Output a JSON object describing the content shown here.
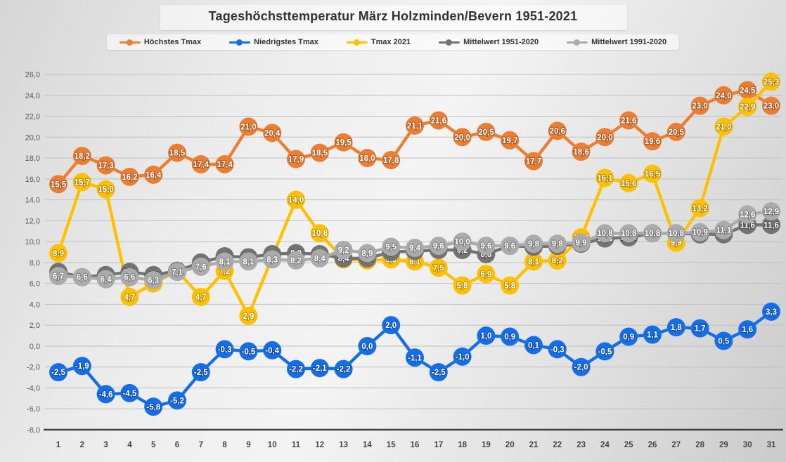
{
  "title": "Tageshöchsttemperatur März Holzminden/Bevern 1951-2021",
  "legend": {
    "items": [
      {
        "label": "Höchstes Tmax",
        "color": "#ED7D31"
      },
      {
        "label": "Niedrigstes Tmax",
        "color": "#156EE8"
      },
      {
        "label": "Tmax 2021",
        "color": "#FFC000"
      },
      {
        "label": "Mittelwert 1951-2020",
        "color": "#737373"
      },
      {
        "label": "Mittelwert 1991-2020",
        "color": "#ABABAB"
      }
    ]
  },
  "chart_data": {
    "type": "line",
    "title": "Tageshöchsttemperatur März Holzminden/Bevern 1951-2021",
    "xlabel": "",
    "ylabel": "",
    "x": [
      1,
      2,
      3,
      4,
      5,
      6,
      7,
      8,
      9,
      10,
      11,
      12,
      13,
      14,
      15,
      16,
      17,
      18,
      19,
      20,
      21,
      22,
      23,
      24,
      25,
      26,
      27,
      28,
      29,
      30,
      31
    ],
    "x_tick_labels": [
      "1",
      "2",
      "3",
      "4",
      "5",
      "6",
      "7",
      "8",
      "9",
      "10",
      "11",
      "12",
      "13",
      "14",
      "15",
      "16",
      "17",
      "18",
      "19",
      "20",
      "21",
      "22",
      "23",
      "24",
      "25",
      "26",
      "27",
      "28",
      "29",
      "30",
      "31"
    ],
    "ylim": [
      -8,
      26
    ],
    "ytick_step": 2,
    "y_tick_labels": [
      "26,0",
      "24,0",
      "22,0",
      "20,0",
      "18,0",
      "16,0",
      "14,0",
      "12,0",
      "10,0",
      "8,0",
      "6,0",
      "4,0",
      "2,0",
      "0,0",
      "-2,0",
      "-4,0",
      "-6,0",
      "-8,0"
    ],
    "grid": true,
    "legend_position": "top",
    "decimal_separator": ",",
    "series": [
      {
        "name": "Höchstes Tmax",
        "color": "#ED7D31",
        "values": [
          15.5,
          18.2,
          17.3,
          16.2,
          16.4,
          18.5,
          17.4,
          17.4,
          21.0,
          20.4,
          17.9,
          18.5,
          19.5,
          18.0,
          17.8,
          21.1,
          21.6,
          20.0,
          20.5,
          19.7,
          17.7,
          20.6,
          18.6,
          20.0,
          21.6,
          19.6,
          20.5,
          23.0,
          24.0,
          24.5,
          23.0
        ]
      },
      {
        "name": "Niedrigstes Tmax",
        "color": "#156EE8",
        "values": [
          -2.5,
          -1.9,
          -4.6,
          -4.5,
          -5.8,
          -5.2,
          -2.5,
          -0.3,
          -0.5,
          -0.4,
          -2.2,
          -2.1,
          -2.2,
          0.0,
          2.0,
          -1.1,
          -2.5,
          -1.0,
          1.0,
          0.9,
          0.1,
          -0.3,
          -2.0,
          -0.5,
          0.9,
          1.1,
          1.8,
          1.7,
          0.5,
          1.6,
          3.3
        ]
      },
      {
        "name": "Tmax 2021",
        "color": "#FFC000",
        "values": [
          8.9,
          15.7,
          15.0,
          4.7,
          6.0,
          7.2,
          4.7,
          7.2,
          2.9,
          8.5,
          14.0,
          10.8,
          8.3,
          8.2,
          8.3,
          8.1,
          7.5,
          5.8,
          6.9,
          5.8,
          8.1,
          8.2,
          10.4,
          16.1,
          15.6,
          16.5,
          9.9,
          13.2,
          21.0,
          22.9,
          25.3
        ]
      },
      {
        "name": "Mittelwert 1951-2020",
        "color": "#737373",
        "values": [
          7.1,
          6.6,
          6.8,
          7.1,
          6.8,
          7.2,
          8.0,
          8.6,
          8.5,
          8.8,
          8.9,
          8.8,
          8.4,
          8.4,
          9.0,
          9.1,
          9.2,
          9.2,
          8.8,
          9.6,
          9.5,
          9.6,
          9.8,
          10.3,
          10.4,
          10.8,
          10.8,
          10.7,
          10.7,
          11.6,
          11.6
        ]
      },
      {
        "name": "Mittelwert 1991-2020",
        "color": "#ABABAB",
        "values": [
          6.7,
          6.6,
          6.4,
          6.6,
          6.3,
          7.1,
          7.6,
          8.1,
          8.1,
          8.3,
          8.2,
          8.4,
          9.2,
          8.9,
          9.5,
          9.4,
          9.6,
          10.0,
          9.6,
          9.6,
          9.8,
          9.8,
          9.9,
          10.8,
          10.8,
          10.8,
          10.8,
          10.9,
          11.1,
          12.6,
          12.9
        ]
      }
    ]
  }
}
